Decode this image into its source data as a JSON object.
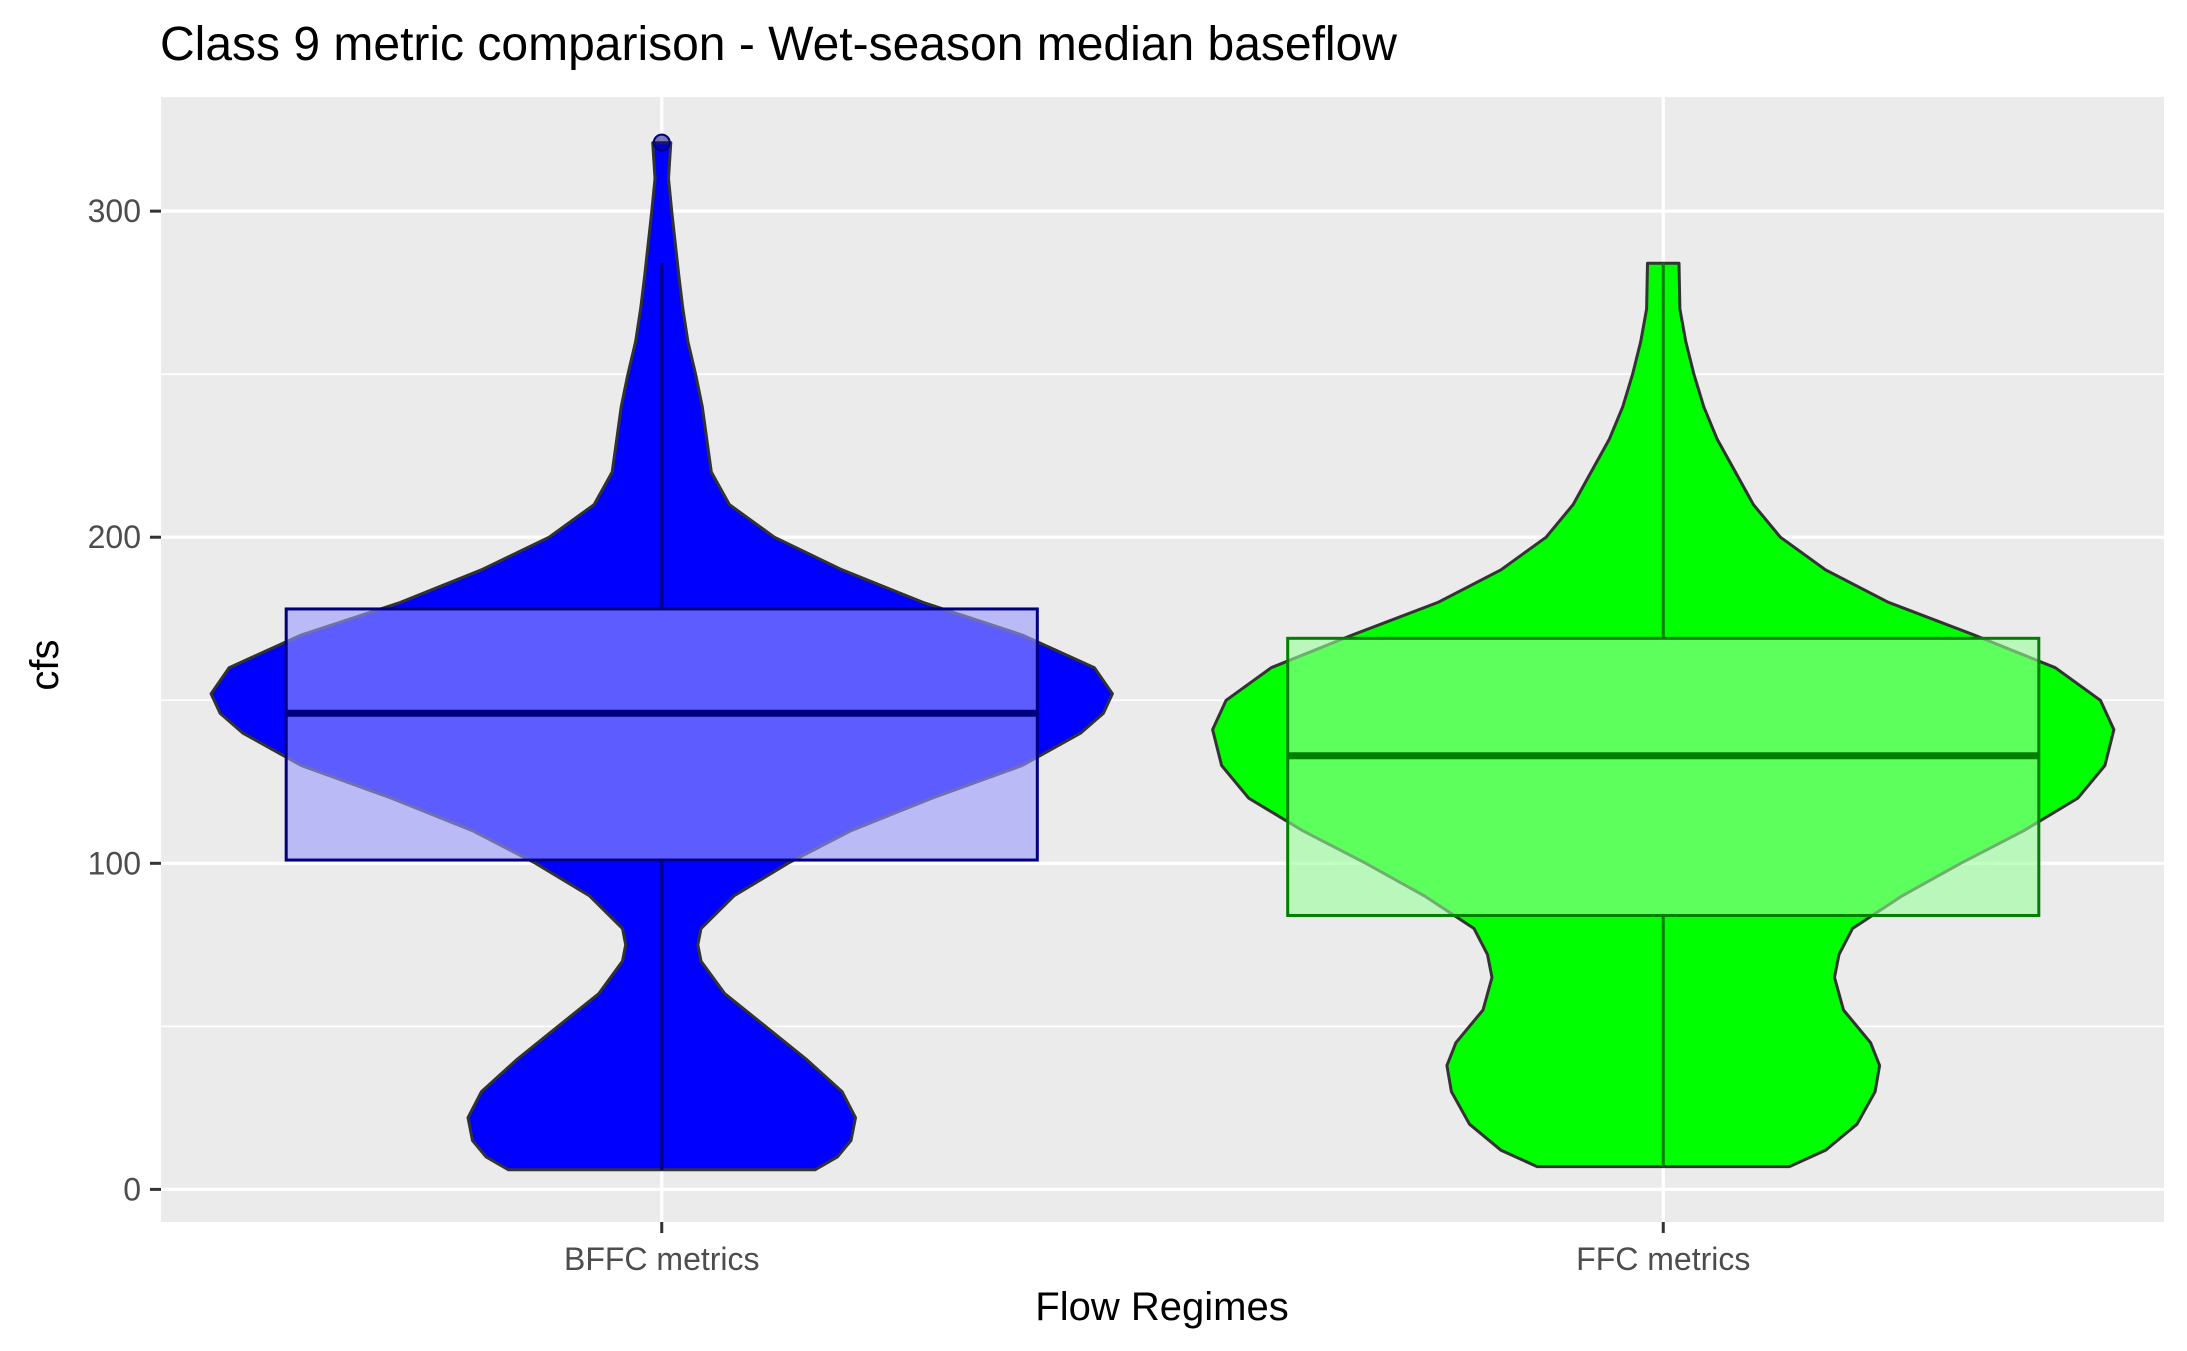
{
  "chart_data": {
    "type": "violin",
    "title": "Class 9 metric comparison - Wet-season median baseflow",
    "xlabel": "Flow Regimes",
    "ylabel": "cfs",
    "ylim": [
      -10,
      335
    ],
    "y_ticks": [
      0,
      100,
      200,
      300
    ],
    "y_tick_labels": [
      "0",
      "100",
      "200",
      "300"
    ],
    "categories": [
      "BFFC metrics",
      "FFC metrics"
    ],
    "grid": true,
    "legend": "none",
    "series": [
      {
        "name": "BFFC metrics",
        "fill": "#0000ff",
        "box_fill": "#9999ff",
        "box_line": "#00007f",
        "min": 6,
        "q1": 101,
        "median": 146,
        "q3": 178,
        "max": 284,
        "outliers": [
          321
        ],
        "violin_top": 321,
        "density_profile": [
          [
            6,
            0.34
          ],
          [
            10,
            0.39
          ],
          [
            15,
            0.42
          ],
          [
            22,
            0.43
          ],
          [
            30,
            0.4
          ],
          [
            40,
            0.32
          ],
          [
            50,
            0.23
          ],
          [
            60,
            0.14
          ],
          [
            70,
            0.087
          ],
          [
            75,
            0.08
          ],
          [
            80,
            0.087
          ],
          [
            90,
            0.16
          ],
          [
            100,
            0.28
          ],
          [
            110,
            0.42
          ],
          [
            120,
            0.6
          ],
          [
            130,
            0.8
          ],
          [
            140,
            0.93
          ],
          [
            146,
            0.98
          ],
          [
            152,
            1.0
          ],
          [
            160,
            0.96
          ],
          [
            170,
            0.8
          ],
          [
            180,
            0.58
          ],
          [
            190,
            0.4
          ],
          [
            200,
            0.25
          ],
          [
            210,
            0.15
          ],
          [
            220,
            0.11
          ],
          [
            230,
            0.1
          ],
          [
            240,
            0.09
          ],
          [
            250,
            0.075
          ],
          [
            260,
            0.058
          ],
          [
            270,
            0.047
          ],
          [
            280,
            0.038
          ],
          [
            290,
            0.03
          ],
          [
            300,
            0.022
          ],
          [
            310,
            0.015
          ],
          [
            321,
            0.02
          ]
        ]
      },
      {
        "name": "FFC metrics",
        "fill": "#00ff00",
        "box_fill": "#99ff99",
        "box_line": "#007f00",
        "min": 7,
        "q1": 84,
        "median": 133,
        "q3": 169,
        "max": 284,
        "outliers": [],
        "violin_top": 284,
        "density_profile": [
          [
            7,
            0.28
          ],
          [
            12,
            0.36
          ],
          [
            20,
            0.43
          ],
          [
            30,
            0.47
          ],
          [
            38,
            0.48
          ],
          [
            45,
            0.46
          ],
          [
            55,
            0.4
          ],
          [
            65,
            0.38
          ],
          [
            72,
            0.39
          ],
          [
            80,
            0.42
          ],
          [
            90,
            0.53
          ],
          [
            100,
            0.66
          ],
          [
            110,
            0.8
          ],
          [
            120,
            0.92
          ],
          [
            130,
            0.98
          ],
          [
            141,
            1.0
          ],
          [
            150,
            0.97
          ],
          [
            160,
            0.87
          ],
          [
            170,
            0.69
          ],
          [
            180,
            0.5
          ],
          [
            190,
            0.36
          ],
          [
            200,
            0.26
          ],
          [
            210,
            0.2
          ],
          [
            220,
            0.16
          ],
          [
            230,
            0.12
          ],
          [
            240,
            0.09
          ],
          [
            250,
            0.068
          ],
          [
            260,
            0.05
          ],
          [
            270,
            0.037
          ],
          [
            284,
            0.035
          ]
        ]
      }
    ]
  }
}
